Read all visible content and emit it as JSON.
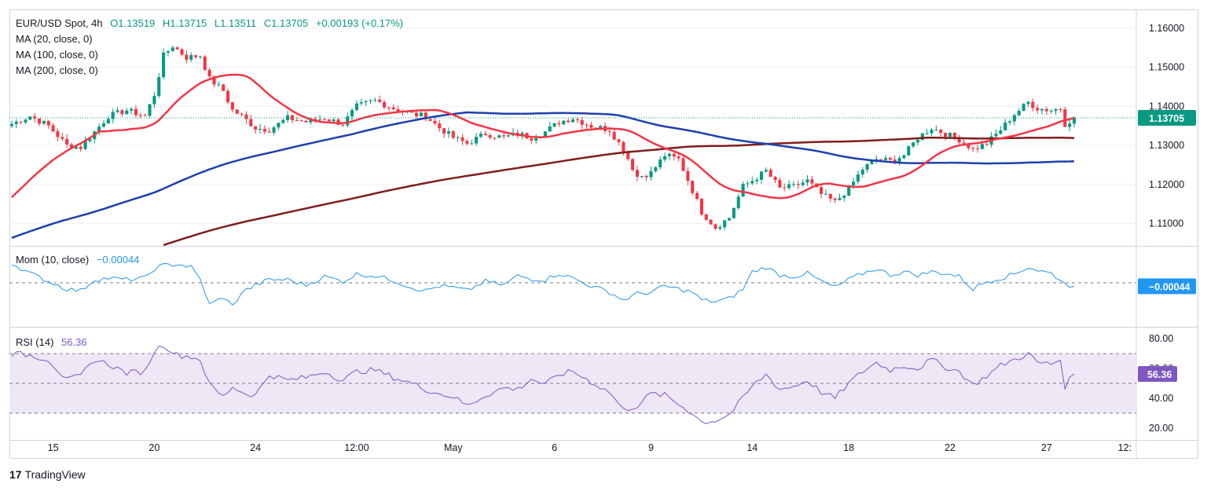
{
  "header": {
    "symbol": "EUR/USD Spot, 4h",
    "open": "O1.13519",
    "high": "H1.13715",
    "low": "L1.13511",
    "close": "C1.13705",
    "change": "+0.00193 (+0.17%)"
  },
  "legend": {
    "ma20": "MA (20, close, 0)",
    "ma100": "MA (100, close, 0)",
    "ma200": "MA (200, close, 0)",
    "mom_label": "Mom (10, close)",
    "mom_value": "−0.00044",
    "rsi_label": "RSI (14)",
    "rsi_value": "56.36"
  },
  "brand": {
    "logo": "17",
    "name": "TradingView"
  },
  "colors": {
    "up": "#089981",
    "down": "#f23645",
    "ma20": "#f23645",
    "ma100": "#1e40af",
    "ma200": "#7f1d1d",
    "mom": "#2196f3",
    "rsi": "#7e57c2",
    "rsi_fill": "#ede7f6",
    "grid": "#eef0f3",
    "axis_text": "#131722"
  },
  "chart_data": {
    "type": "candlestick",
    "title": "EUR/USD Spot, 4h",
    "x_labels": [
      {
        "label": "15",
        "index": 9
      },
      {
        "label": "20",
        "index": 31
      },
      {
        "label": "24",
        "index": 53
      },
      {
        "label": "12:00",
        "index": 75
      },
      {
        "label": "May",
        "index": 96
      },
      {
        "label": "6",
        "index": 118
      },
      {
        "label": "9",
        "index": 139
      },
      {
        "label": "14",
        "index": 161
      },
      {
        "label": "18",
        "index": 182
      },
      {
        "label": "22",
        "index": 204
      },
      {
        "label": "27",
        "index": 225
      },
      {
        "label": "12:",
        "index": 242
      }
    ],
    "num_slots": 245,
    "price_axis": {
      "min": 1.1045,
      "max": 1.1648,
      "ticks": [
        "1.16000",
        "1.15000",
        "1.14000",
        "1.13000",
        "1.12000",
        "1.11000"
      ]
    },
    "last_price": {
      "value": 1.13705,
      "label": "1.13705"
    },
    "anchors_close": [
      [
        0,
        1.1355
      ],
      [
        4,
        1.1375
      ],
      [
        8,
        1.135
      ],
      [
        12,
        1.13
      ],
      [
        15,
        1.1295
      ],
      [
        18,
        1.1335
      ],
      [
        21,
        1.1375
      ],
      [
        25,
        1.139
      ],
      [
        29,
        1.1375
      ],
      [
        31,
        1.143
      ],
      [
        33,
        1.153
      ],
      [
        35,
        1.1555
      ],
      [
        38,
        1.1525
      ],
      [
        41,
        1.153
      ],
      [
        43,
        1.147
      ],
      [
        46,
        1.144
      ],
      [
        48,
        1.139
      ],
      [
        50,
        1.1375
      ],
      [
        53,
        1.1345
      ],
      [
        56,
        1.134
      ],
      [
        60,
        1.137
      ],
      [
        64,
        1.136
      ],
      [
        68,
        1.137
      ],
      [
        72,
        1.1355
      ],
      [
        75,
        1.14
      ],
      [
        79,
        1.1415
      ],
      [
        83,
        1.1395
      ],
      [
        87,
        1.138
      ],
      [
        90,
        1.1375
      ],
      [
        93,
        1.1345
      ],
      [
        96,
        1.132
      ],
      [
        99,
        1.1305
      ],
      [
        103,
        1.133
      ],
      [
        107,
        1.132
      ],
      [
        110,
        1.133
      ],
      [
        113,
        1.132
      ],
      [
        116,
        1.1335
      ],
      [
        119,
        1.136
      ],
      [
        122,
        1.137
      ],
      [
        126,
        1.135
      ],
      [
        130,
        1.134
      ],
      [
        133,
        1.129
      ],
      [
        136,
        1.122
      ],
      [
        139,
        1.123
      ],
      [
        142,
        1.1275
      ],
      [
        145,
        1.1265
      ],
      [
        148,
        1.1185
      ],
      [
        150,
        1.113
      ],
      [
        153,
        1.109
      ],
      [
        156,
        1.1115
      ],
      [
        159,
        1.1195
      ],
      [
        161,
        1.121
      ],
      [
        164,
        1.1235
      ],
      [
        167,
        1.119
      ],
      [
        170,
        1.1195
      ],
      [
        173,
        1.121
      ],
      [
        176,
        1.1175
      ],
      [
        179,
        1.1155
      ],
      [
        182,
        1.119
      ],
      [
        185,
        1.124
      ],
      [
        188,
        1.1265
      ],
      [
        191,
        1.126
      ],
      [
        194,
        1.1275
      ],
      [
        197,
        1.132
      ],
      [
        200,
        1.1345
      ],
      [
        203,
        1.133
      ],
      [
        206,
        1.1315
      ],
      [
        209,
        1.129
      ],
      [
        212,
        1.1305
      ],
      [
        215,
        1.134
      ],
      [
        218,
        1.138
      ],
      [
        221,
        1.141
      ],
      [
        223,
        1.1395
      ],
      [
        226,
        1.139
      ],
      [
        228,
        1.1395
      ],
      [
        229,
        1.1355
      ],
      [
        231,
        1.13705
      ]
    ],
    "mom_axis": {
      "min": -0.0055,
      "max": 0.0045,
      "zero": 0.0
    },
    "mom_anchors": [
      [
        0,
        0.0025
      ],
      [
        4,
        0.0012
      ],
      [
        8,
        0.0002
      ],
      [
        12,
        -0.0008
      ],
      [
        15,
        -0.001
      ],
      [
        18,
        0.0004
      ],
      [
        21,
        0.0006
      ],
      [
        25,
        0.0004
      ],
      [
        29,
        0.0006
      ],
      [
        31,
        0.0018
      ],
      [
        33,
        0.0022
      ],
      [
        36,
        0.0024
      ],
      [
        39,
        0.002
      ],
      [
        41,
        0.0004
      ],
      [
        43,
        -0.0028
      ],
      [
        46,
        -0.0018
      ],
      [
        48,
        -0.003
      ],
      [
        50,
        -0.0012
      ],
      [
        53,
        -0.0003
      ],
      [
        56,
        0.0004
      ],
      [
        60,
        0.0004
      ],
      [
        64,
        -0.0003
      ],
      [
        68,
        0.0008
      ],
      [
        72,
        0.0002
      ],
      [
        75,
        0.0011
      ],
      [
        79,
        0.0009
      ],
      [
        83,
        0.0003
      ],
      [
        87,
        -0.0006
      ],
      [
        90,
        -0.001
      ],
      [
        93,
        -0.0004
      ],
      [
        96,
        -0.0006
      ],
      [
        99,
        -0.001
      ],
      [
        103,
        0.0002
      ],
      [
        107,
        -0.0003
      ],
      [
        110,
        0.0009
      ],
      [
        113,
        0.0005
      ],
      [
        116,
        0.0004
      ],
      [
        119,
        0.0012
      ],
      [
        122,
        0.0006
      ],
      [
        126,
        -0.0004
      ],
      [
        130,
        -0.0012
      ],
      [
        133,
        -0.0022
      ],
      [
        136,
        -0.0014
      ],
      [
        139,
        -0.0012
      ],
      [
        142,
        -0.0004
      ],
      [
        145,
        -0.0008
      ],
      [
        148,
        -0.0012
      ],
      [
        150,
        -0.0022
      ],
      [
        153,
        -0.0024
      ],
      [
        156,
        -0.002
      ],
      [
        159,
        -0.0008
      ],
      [
        161,
        0.0014
      ],
      [
        164,
        0.002
      ],
      [
        167,
        0.001
      ],
      [
        170,
        0.0008
      ],
      [
        173,
        0.0012
      ],
      [
        176,
        0.0002
      ],
      [
        179,
        -0.0006
      ],
      [
        182,
        0.0004
      ],
      [
        185,
        0.0012
      ],
      [
        188,
        0.0018
      ],
      [
        191,
        0.001
      ],
      [
        194,
        0.0014
      ],
      [
        197,
        0.001
      ],
      [
        200,
        0.0014
      ],
      [
        203,
        0.0012
      ],
      [
        206,
        0.0008
      ],
      [
        209,
        -0.0008
      ],
      [
        212,
        0.0002
      ],
      [
        215,
        0.0006
      ],
      [
        218,
        0.0011
      ],
      [
        221,
        0.002
      ],
      [
        223,
        0.0016
      ],
      [
        226,
        0.0012
      ],
      [
        228,
        0.0004
      ],
      [
        229,
        -0.0002
      ],
      [
        231,
        -0.00044
      ]
    ],
    "rsi_axis": {
      "min": 13,
      "max": 87,
      "ticks": [
        "80.00",
        "60.00",
        "40.00",
        "20.00"
      ],
      "overbought": 70,
      "middle": 50,
      "oversold": 30
    },
    "rsi_anchors": [
      [
        0,
        70
      ],
      [
        4,
        69
      ],
      [
        8,
        66
      ],
      [
        12,
        52
      ],
      [
        15,
        55
      ],
      [
        18,
        66
      ],
      [
        21,
        63
      ],
      [
        25,
        57
      ],
      [
        29,
        58
      ],
      [
        31,
        72
      ],
      [
        33,
        76
      ],
      [
        36,
        69
      ],
      [
        39,
        68
      ],
      [
        41,
        66
      ],
      [
        43,
        49
      ],
      [
        46,
        41
      ],
      [
        48,
        48
      ],
      [
        50,
        44
      ],
      [
        53,
        42
      ],
      [
        56,
        56
      ],
      [
        60,
        52
      ],
      [
        64,
        54
      ],
      [
        68,
        58
      ],
      [
        72,
        52
      ],
      [
        75,
        58
      ],
      [
        79,
        59
      ],
      [
        83,
        54
      ],
      [
        87,
        50
      ],
      [
        90,
        46
      ],
      [
        93,
        43
      ],
      [
        96,
        41
      ],
      [
        99,
        35
      ],
      [
        103,
        42
      ],
      [
        107,
        47
      ],
      [
        110,
        46
      ],
      [
        113,
        53
      ],
      [
        116,
        49
      ],
      [
        119,
        56
      ],
      [
        122,
        58
      ],
      [
        126,
        51
      ],
      [
        130,
        44
      ],
      [
        133,
        32
      ],
      [
        136,
        35
      ],
      [
        139,
        43
      ],
      [
        142,
        42
      ],
      [
        145,
        36
      ],
      [
        148,
        30
      ],
      [
        150,
        24
      ],
      [
        153,
        25
      ],
      [
        156,
        29
      ],
      [
        159,
        40
      ],
      [
        161,
        48
      ],
      [
        164,
        56
      ],
      [
        167,
        46
      ],
      [
        170,
        48
      ],
      [
        173,
        52
      ],
      [
        176,
        44
      ],
      [
        179,
        40
      ],
      [
        182,
        50
      ],
      [
        185,
        58
      ],
      [
        188,
        64
      ],
      [
        191,
        59
      ],
      [
        194,
        62
      ],
      [
        197,
        60
      ],
      [
        200,
        66
      ],
      [
        203,
        61
      ],
      [
        206,
        58
      ],
      [
        209,
        49
      ],
      [
        212,
        55
      ],
      [
        215,
        62
      ],
      [
        218,
        66
      ],
      [
        221,
        70
      ],
      [
        223,
        64
      ],
      [
        226,
        63
      ],
      [
        228,
        66
      ],
      [
        229,
        48
      ],
      [
        231,
        56.36
      ]
    ]
  }
}
